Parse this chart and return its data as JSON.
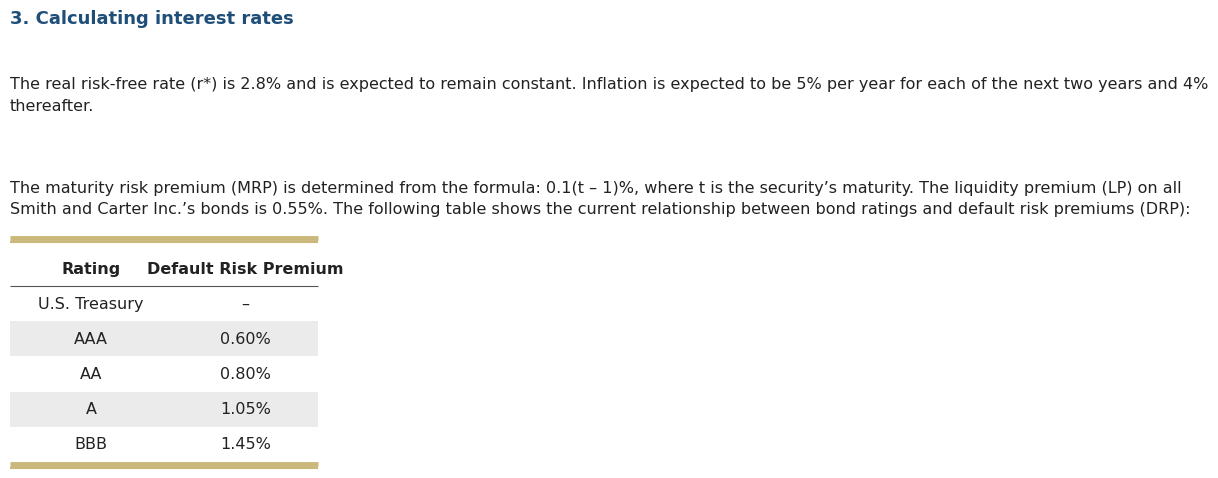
{
  "title": "3. Calculating interest rates",
  "title_color": "#1F4E79",
  "title_fontsize": 13,
  "para1": "The real risk-free rate (r*) is 2.8% and is expected to remain constant. Inflation is expected to be 5% per year for each of the next two years and 4%\nthereafter.",
  "para2": "The maturity risk premium (MRP) is determined from the formula: 0.1(t – 1)%, where t is the security’s maturity. The liquidity premium (LP) on all\nSmith and Carter Inc.’s bonds is 0.55%. The following table shows the current relationship between bond ratings and default risk premiums (DRP):",
  "text_color": "#222222",
  "text_fontsize": 11.5,
  "table_header": [
    "Rating",
    "Default Risk Premium"
  ],
  "table_rows": [
    [
      "U.S. Treasury",
      "–"
    ],
    [
      "AAA",
      "0.60%"
    ],
    [
      "AA",
      "0.80%"
    ],
    [
      "A",
      "1.05%"
    ],
    [
      "BBB",
      "1.45%"
    ]
  ],
  "shaded_rows": [
    1,
    3
  ],
  "row_shade_color": "#EBEBEB",
  "header_fontsize": 11.5,
  "table_fontsize": 11.5,
  "golden_line_color": "#C9B87A",
  "header_line_color": "#555555",
  "bg_color": "#FFFFFF",
  "fig_width": 12.0,
  "fig_height": 4.81,
  "dpi": 100
}
